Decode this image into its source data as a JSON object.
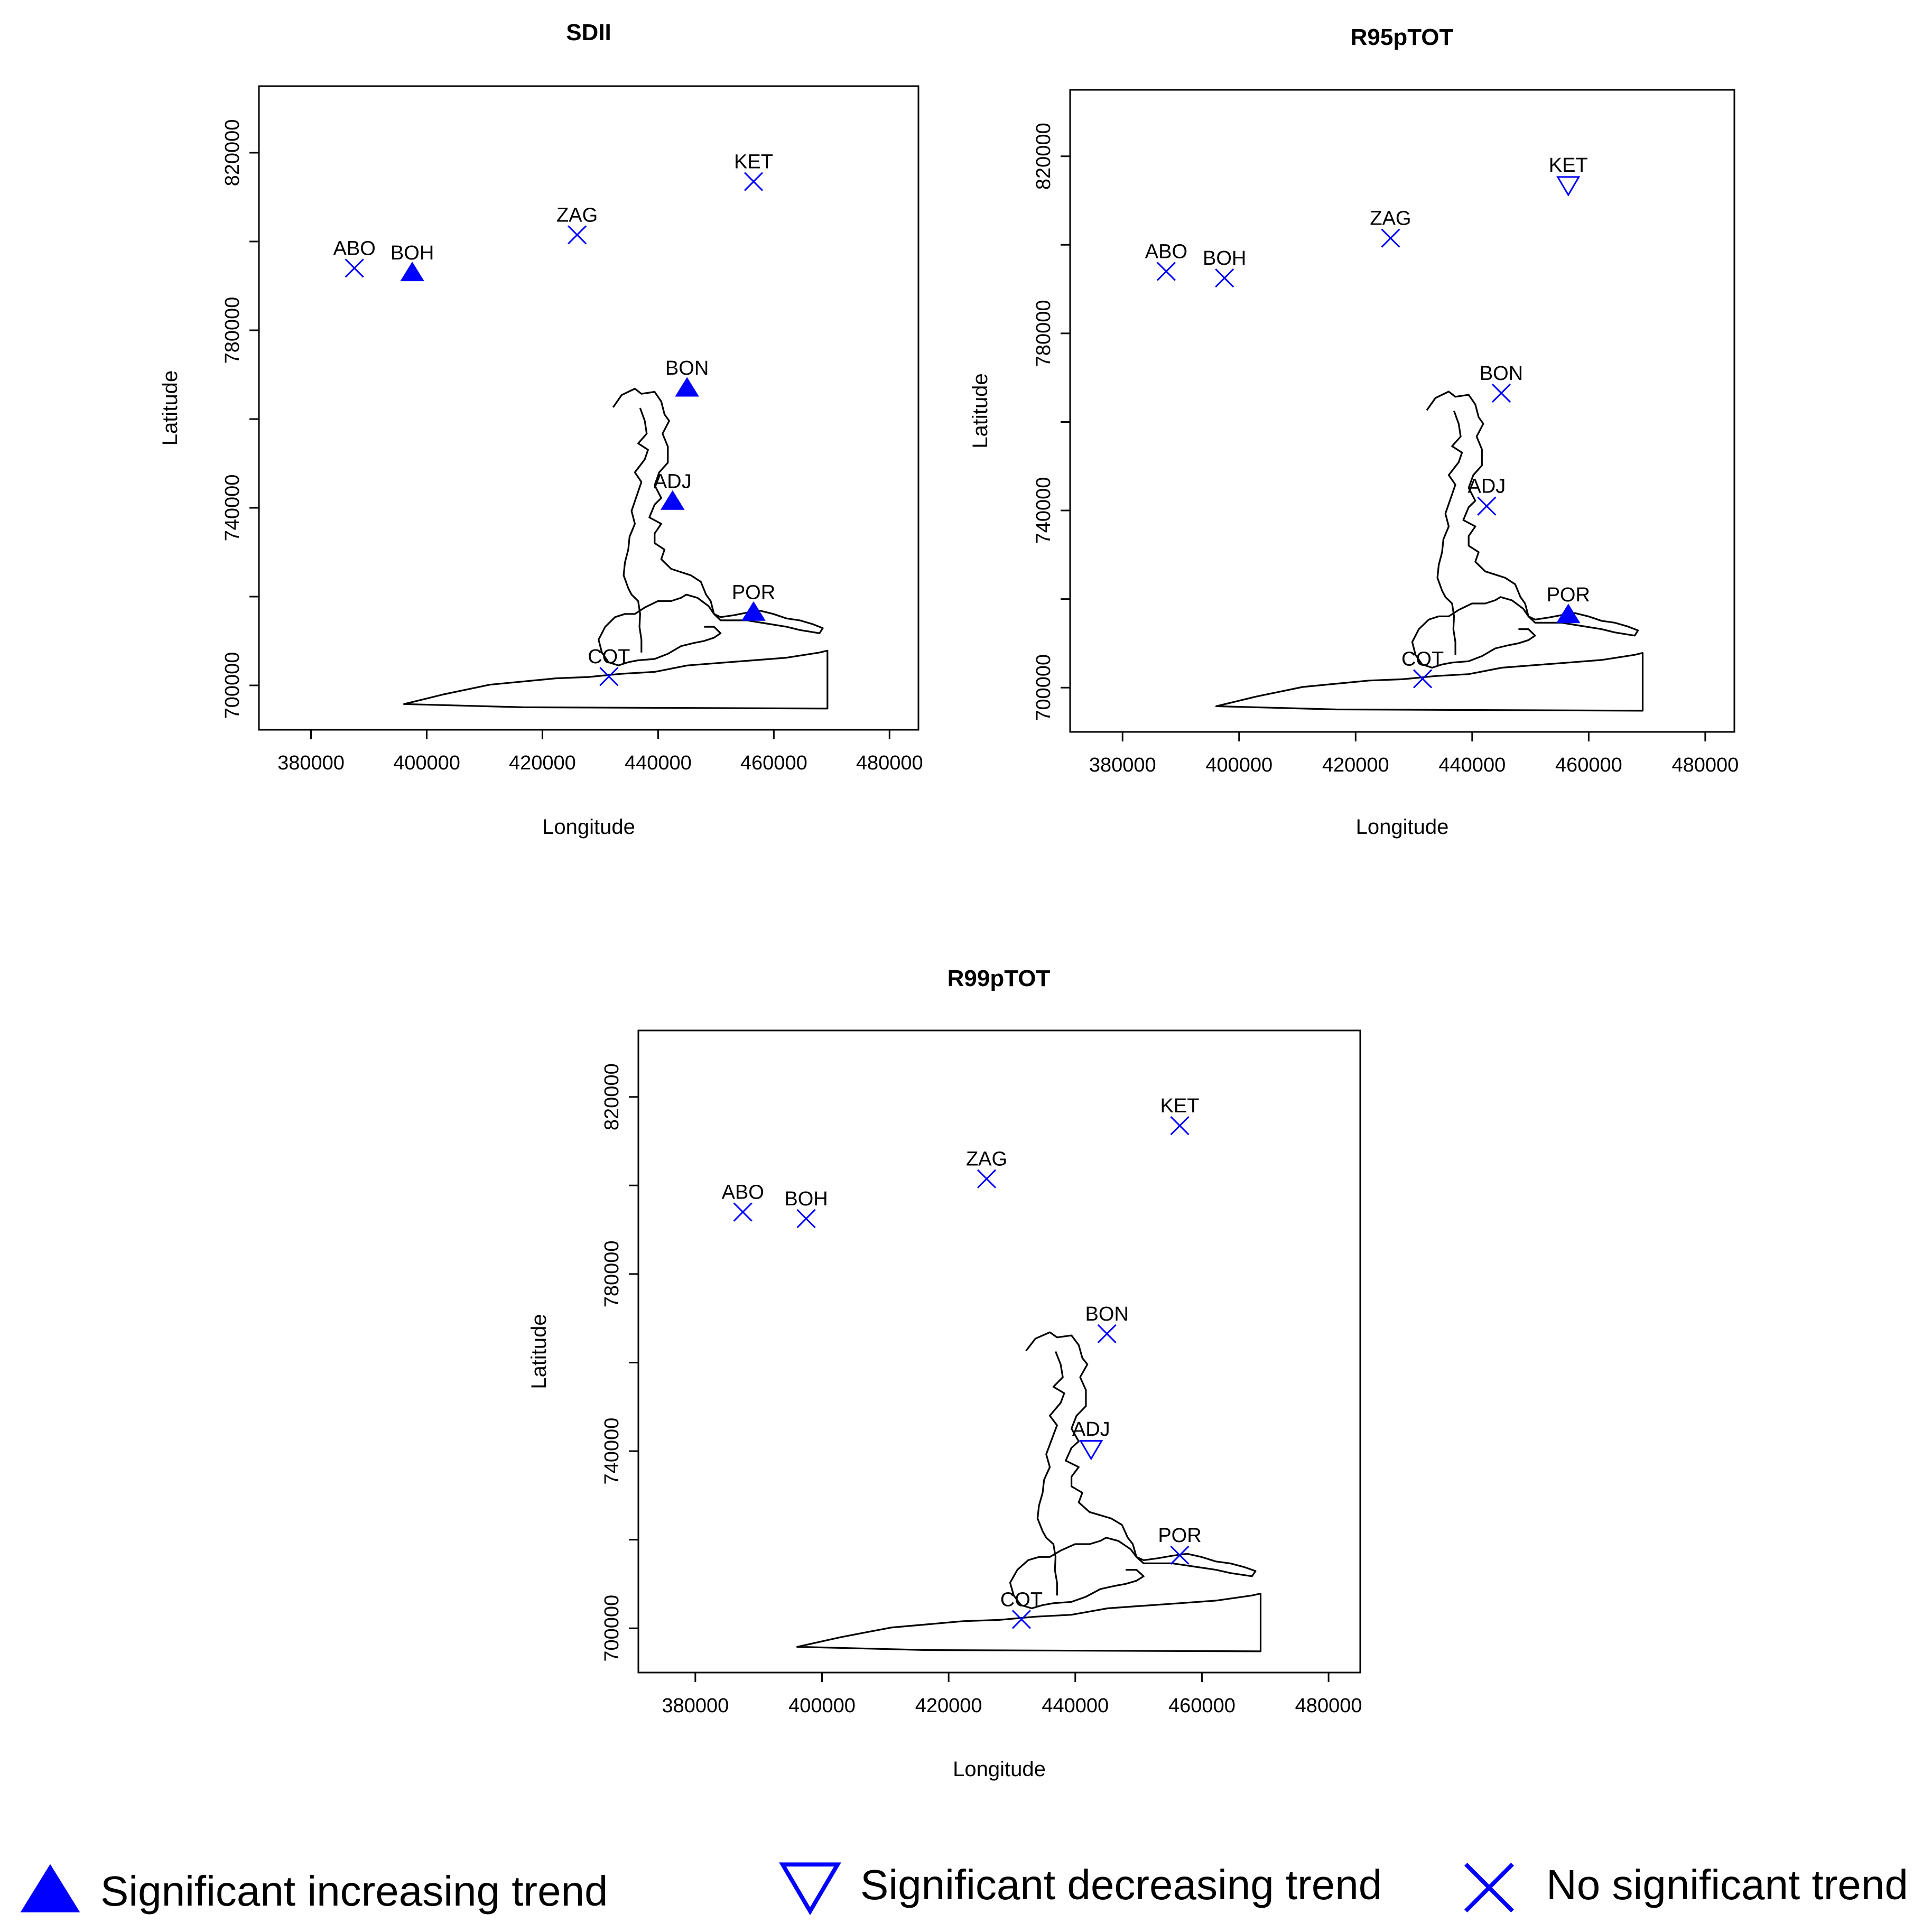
{
  "colors": {
    "marker": "#0000ff",
    "axes": "#000000",
    "background": "#ffffff"
  },
  "chart_data": [
    {
      "type": "scatter",
      "title": "SDII",
      "xlabel": "Longitude",
      "ylabel": "Latitude",
      "xlim": [
        371000,
        485000
      ],
      "ylim": [
        690000,
        835000
      ],
      "xticks": [
        "380000",
        "400000",
        "420000",
        "440000",
        "460000",
        "480000"
      ],
      "yticks": [
        "700000",
        "740000",
        "780000",
        "820000"
      ],
      "grid": false,
      "points": [
        {
          "label": "ABO",
          "x": 387500,
          "y": 794000,
          "trend": "none"
        },
        {
          "label": "BOH",
          "x": 397500,
          "y": 793000,
          "trend": "increasing"
        },
        {
          "label": "ZAG",
          "x": 426000,
          "y": 801500,
          "trend": "none"
        },
        {
          "label": "KET",
          "x": 456500,
          "y": 813500,
          "trend": "none"
        },
        {
          "label": "BON",
          "x": 445000,
          "y": 767000,
          "trend": "increasing"
        },
        {
          "label": "ADJ",
          "x": 442500,
          "y": 741500,
          "trend": "increasing"
        },
        {
          "label": "POR",
          "x": 456500,
          "y": 716500,
          "trend": "increasing"
        },
        {
          "label": "COT",
          "x": 431500,
          "y": 702000,
          "trend": "none"
        }
      ]
    },
    {
      "type": "scatter",
      "title": "R95pTOT",
      "xlabel": "Longitude",
      "ylabel": "Latitude",
      "xlim": [
        371000,
        485000
      ],
      "ylim": [
        690000,
        835000
      ],
      "xticks": [
        "380000",
        "400000",
        "420000",
        "440000",
        "460000",
        "480000"
      ],
      "yticks": [
        "700000",
        "740000",
        "780000",
        "820000"
      ],
      "grid": false,
      "points": [
        {
          "label": "ABO",
          "x": 387500,
          "y": 794000,
          "trend": "none"
        },
        {
          "label": "BOH",
          "x": 397500,
          "y": 792500,
          "trend": "none"
        },
        {
          "label": "ZAG",
          "x": 426000,
          "y": 801500,
          "trend": "none"
        },
        {
          "label": "KET",
          "x": 456500,
          "y": 813500,
          "trend": "decreasing"
        },
        {
          "label": "BON",
          "x": 445000,
          "y": 766500,
          "trend": "none"
        },
        {
          "label": "ADJ",
          "x": 442500,
          "y": 741000,
          "trend": "none"
        },
        {
          "label": "POR",
          "x": 456500,
          "y": 716500,
          "trend": "increasing"
        },
        {
          "label": "COT",
          "x": 431500,
          "y": 702000,
          "trend": "none"
        }
      ]
    },
    {
      "type": "scatter",
      "title": "R99pTOT",
      "xlabel": "Longitude",
      "ylabel": "Latitude",
      "xlim": [
        371000,
        485000
      ],
      "ylim": [
        690000,
        835000
      ],
      "xticks": [
        "380000",
        "400000",
        "420000",
        "440000",
        "460000",
        "480000"
      ],
      "yticks": [
        "700000",
        "740000",
        "780000",
        "820000"
      ],
      "grid": false,
      "points": [
        {
          "label": "ABO",
          "x": 387500,
          "y": 794000,
          "trend": "none"
        },
        {
          "label": "BOH",
          "x": 397500,
          "y": 792500,
          "trend": "none"
        },
        {
          "label": "ZAG",
          "x": 426000,
          "y": 801500,
          "trend": "none"
        },
        {
          "label": "KET",
          "x": 456500,
          "y": 813500,
          "trend": "none"
        },
        {
          "label": "BON",
          "x": 445000,
          "y": 766500,
          "trend": "none"
        },
        {
          "label": "ADJ",
          "x": 442500,
          "y": 740500,
          "trend": "decreasing"
        },
        {
          "label": "POR",
          "x": 456500,
          "y": 716500,
          "trend": "none"
        },
        {
          "label": "COT",
          "x": 431500,
          "y": 702000,
          "trend": "none"
        }
      ]
    }
  ],
  "legend": {
    "placement": "bottom",
    "items": [
      {
        "trend": "increasing",
        "label": "Significant increasing trend",
        "icon": "filled-triangle-icon"
      },
      {
        "trend": "decreasing",
        "label": "Significant decreasing trend",
        "icon": "open-inverted-triangle-icon"
      },
      {
        "trend": "none",
        "label": "No significant trend",
        "icon": "cross-icon"
      }
    ]
  }
}
